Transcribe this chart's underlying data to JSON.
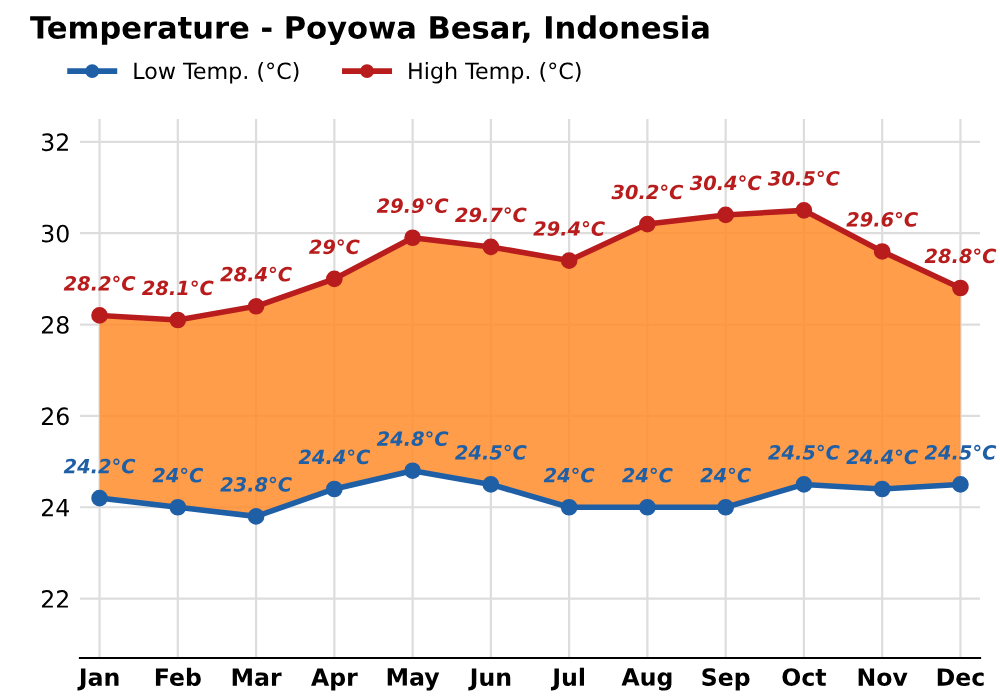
{
  "chart_data": {
    "type": "line",
    "title": "Temperature - Poyowa Besar, Indonesia",
    "categories": [
      "Jan",
      "Feb",
      "Mar",
      "Apr",
      "May",
      "Jun",
      "Jul",
      "Aug",
      "Sep",
      "Oct",
      "Nov",
      "Dec"
    ],
    "series": [
      {
        "name": "Low Temp. (°C)",
        "color": "#1f5fa6",
        "values": [
          24.2,
          24,
          23.8,
          24.4,
          24.8,
          24.5,
          24,
          24,
          24,
          24.5,
          24.4,
          24.5
        ],
        "value_labels": [
          "24.2°C",
          "24°C",
          "23.8°C",
          "24.4°C",
          "24.8°C",
          "24.5°C",
          "24°C",
          "24°C",
          "24°C",
          "24.5°C",
          "24.4°C",
          "24.5°C"
        ]
      },
      {
        "name": "High Temp. (°C)",
        "type": "area",
        "color": "#b81c1c",
        "values": [
          28.2,
          28.1,
          28.4,
          29,
          29.9,
          29.7,
          29.4,
          30.2,
          30.4,
          30.5,
          29.6,
          28.8
        ],
        "value_labels": [
          "28.2°C",
          "28.1°C",
          "28.4°C",
          "29°C",
          "29.9°C",
          "29.7°C",
          "29.4°C",
          "30.2°C",
          "30.4°C",
          "30.5°C",
          "29.6°C",
          "28.8°C"
        ]
      }
    ],
    "ylim": [
      20.7,
      32.5
    ],
    "yticks": [
      22,
      24,
      26,
      28,
      30,
      32
    ],
    "grid": true,
    "legend": "top left",
    "marker": "circle",
    "line_style": "solid"
  }
}
